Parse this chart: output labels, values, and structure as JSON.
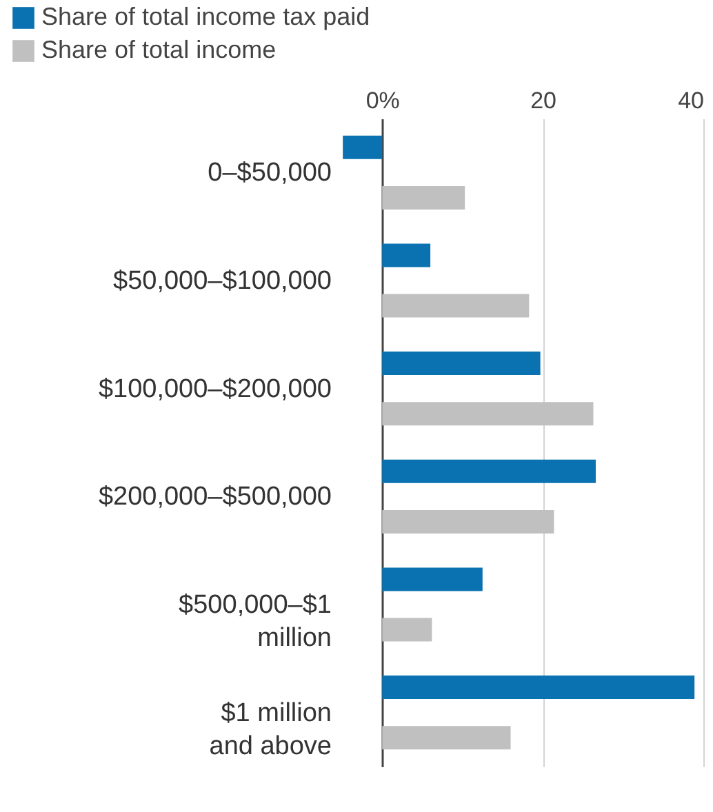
{
  "chart_data": {
    "type": "bar",
    "orientation": "horizontal",
    "categories": [
      "0–$50,000",
      "$50,000–$100,000",
      "$100,000–$200,000",
      "$200,000–$500,000",
      "$500,000–$1 million",
      "$1 million and above"
    ],
    "series": [
      {
        "name": "Share of total income tax paid",
        "color": "#0a72b0",
        "values": [
          -4.9,
          6.0,
          19.7,
          26.6,
          12.5,
          38.9
        ]
      },
      {
        "name": "Share of total income",
        "color": "#c0c0c0",
        "values": [
          10.3,
          18.3,
          26.3,
          21.4,
          6.2,
          16.0
        ]
      }
    ],
    "xlim": [
      -5,
      40
    ],
    "xticks": [
      {
        "value": 0,
        "label": "0%"
      },
      20,
      40
    ],
    "grid": "x",
    "legend": "top left"
  }
}
